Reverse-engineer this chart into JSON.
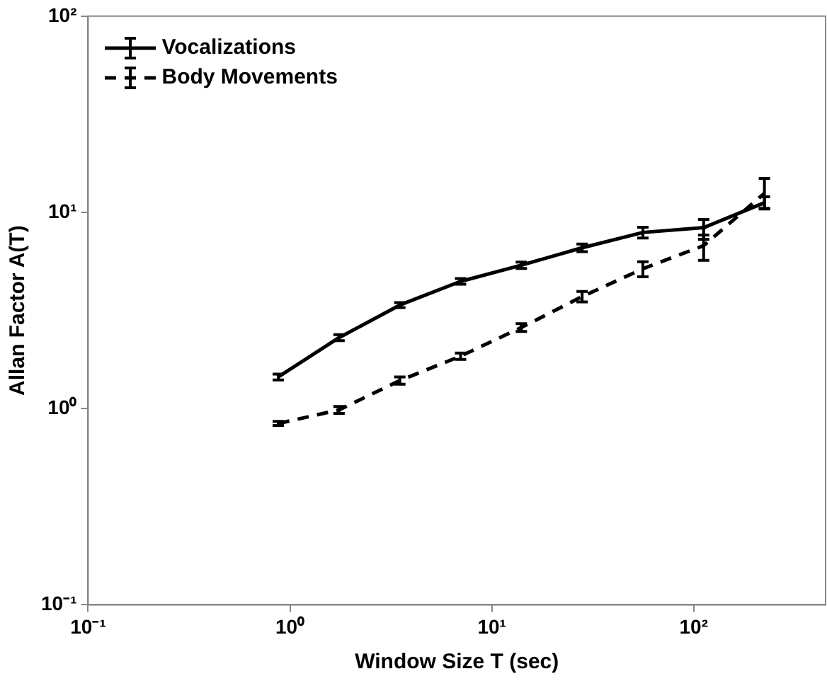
{
  "chart_data": {
    "type": "line",
    "xlabel": "Window Size T (sec)",
    "ylabel": "Allan Factor A(T)",
    "x": [
      0.875,
      1.75,
      3.5,
      7,
      14,
      28,
      56,
      112,
      224
    ],
    "series": [
      {
        "name": "Vocalizations",
        "color": "#000000",
        "line_style": "solid",
        "values": [
          1.45,
          2.3,
          3.37,
          4.45,
          5.38,
          6.6,
          7.9,
          8.36,
          11.2
        ],
        "errors": [
          0.05,
          0.08,
          0.1,
          0.15,
          0.2,
          0.3,
          0.5,
          [
            7.3,
            9.2
          ],
          [
            10.5,
            12
          ]
        ]
      },
      {
        "name": "Body Movements",
        "color": "#000000",
        "line_style": "dashed",
        "values": [
          0.84,
          0.985,
          1.39,
          1.85,
          2.59,
          3.72,
          5.16,
          6.77,
          12.5
        ],
        "errors": [
          0.02,
          0.04,
          0.06,
          0.07,
          0.12,
          [
            3.5,
            3.95
          ],
          [
            4.7,
            5.6
          ],
          [
            5.7,
            7.67
          ],
          [
            10.4,
            14.9
          ]
        ]
      }
    ],
    "log": "xy",
    "xlim": [
      0.1,
      450
    ],
    "ylim": [
      0.1,
      100
    ],
    "xticks": [
      {
        "value": 0.1,
        "label": "10⁻¹"
      },
      {
        "value": 1,
        "label": "10⁰"
      },
      {
        "value": 10,
        "label": "10¹"
      },
      {
        "value": 100,
        "label": "10²"
      }
    ],
    "yticks": [
      {
        "value": 0.1,
        "label": "10⁻¹"
      },
      {
        "value": 1,
        "label": "10⁰"
      },
      {
        "value": 10,
        "label": "10¹"
      },
      {
        "value": 100,
        "label": "10²"
      }
    ],
    "grid": false,
    "legend": "top left"
  }
}
